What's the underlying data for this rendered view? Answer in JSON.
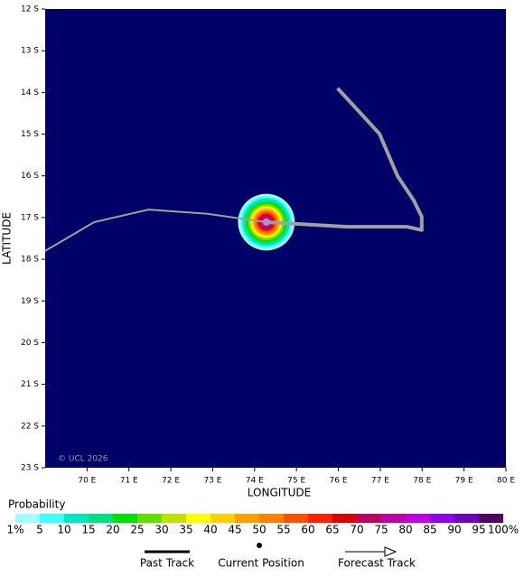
{
  "chart_data": {
    "type": "map",
    "xlabel": "LONGITUDE",
    "ylabel": "LATITUDE",
    "credit": "© UCL 2026",
    "background": "#000066",
    "xlim": [
      69,
      80
    ],
    "xticks": [
      {
        "value": 70,
        "label": "70 E"
      },
      {
        "value": 71,
        "label": "71 E"
      },
      {
        "value": 72,
        "label": "72 E"
      },
      {
        "value": 73,
        "label": "73 E"
      },
      {
        "value": 74,
        "label": "74 E"
      },
      {
        "value": 75,
        "label": "75 E"
      },
      {
        "value": 76,
        "label": "76 E"
      },
      {
        "value": 77,
        "label": "77 E"
      },
      {
        "value": 78,
        "label": "78 E"
      },
      {
        "value": 79,
        "label": "79 E"
      },
      {
        "value": 80,
        "label": "80 E"
      }
    ],
    "ylim": [
      12,
      23
    ],
    "yticks": [
      {
        "value": 12,
        "label": "12 S"
      },
      {
        "value": 13,
        "label": "13 S"
      },
      {
        "value": 14,
        "label": "14 S"
      },
      {
        "value": 15,
        "label": "15 S"
      },
      {
        "value": 16,
        "label": "16 S"
      },
      {
        "value": 17,
        "label": "17 S"
      },
      {
        "value": 18,
        "label": "18 S"
      },
      {
        "value": 19,
        "label": "19 S"
      },
      {
        "value": 20,
        "label": "20 S"
      },
      {
        "value": 21,
        "label": "21 S"
      },
      {
        "value": 22,
        "label": "22 S"
      },
      {
        "value": 23,
        "label": "23 S"
      }
    ],
    "past_track": {
      "color": "#a0a0a0",
      "lon": [
        75.98,
        76.98,
        77.41,
        77.8,
        77.99,
        77.99,
        77.63,
        76.18,
        74.28
      ],
      "lat": [
        13.9,
        14.99,
        16.0,
        16.59,
        16.98,
        17.3,
        17.22,
        17.22,
        17.11
      ]
    },
    "forecast_track": {
      "color": "#a0a0a0",
      "lon": [
        74.28,
        72.87,
        71.47,
        70.17,
        69.0
      ],
      "lat": [
        17.11,
        16.91,
        16.81,
        17.11,
        17.8
      ]
    },
    "current_position": {
      "lon": 74.28,
      "lat": 17.11
    },
    "probability_ring_radii": [
      0.68,
      0.62,
      0.57,
      0.52,
      0.48,
      0.44,
      0.4,
      0.37,
      0.34,
      0.31,
      0.28,
      0.25,
      0.22,
      0.19,
      0.16,
      0.13,
      0.1,
      0.07
    ],
    "colorbar": {
      "title": "Probability",
      "ticks": [
        {
          "value": 1,
          "label": "1%"
        },
        5,
        10,
        15,
        20,
        25,
        30,
        35,
        40,
        45,
        50,
        55,
        60,
        65,
        70,
        75,
        80,
        85,
        90,
        95,
        {
          "value": 100,
          "label": "100%"
        }
      ],
      "colors": [
        "#a0ffff",
        "#40ffff",
        "#00e8c0",
        "#00e080",
        "#00e000",
        "#60e000",
        "#c0e000",
        "#ffff00",
        "#ffd000",
        "#ffa000",
        "#ff8000",
        "#ff5000",
        "#ff2000",
        "#e00000",
        "#c00060",
        "#c000a0",
        "#c000e0",
        "#9000f0",
        "#7000c0",
        "#500060"
      ]
    },
    "legend": [
      "Past Track",
      "Current Position",
      "Forecast Track"
    ]
  }
}
